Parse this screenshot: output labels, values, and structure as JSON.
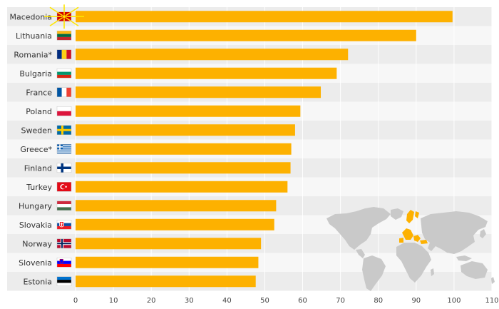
{
  "chart_data": {
    "type": "bar",
    "orientation": "horizontal",
    "title": "",
    "xlabel": "",
    "ylabel": "",
    "xlim": [
      0,
      110
    ],
    "ticks": [
      0,
      10,
      20,
      30,
      40,
      50,
      60,
      70,
      80,
      90,
      100,
      110
    ],
    "grid": true,
    "bar_color": "#fdb100",
    "categories": [
      "Macedonia",
      "Lithuania",
      "Romania*",
      "Bulgaria",
      "France",
      "Poland",
      "Sweden",
      "Greece*",
      "Finland",
      "Turkey",
      "Hungary",
      "Slovakia",
      "Norway",
      "Slovenia",
      "Estonia"
    ],
    "values": [
      99.6,
      90.0,
      72.0,
      69.0,
      64.8,
      59.4,
      58.0,
      57.0,
      56.8,
      56.0,
      53.0,
      52.5,
      49.0,
      48.3,
      47.6
    ],
    "flags": [
      "macedonia-flag",
      "lithuania-flag",
      "romania-flag",
      "bulgaria-flag",
      "france-flag",
      "poland-flag",
      "sweden-flag",
      "greece-flag",
      "finland-flag",
      "turkey-flag",
      "hungary-flag",
      "slovakia-flag",
      "norway-flag",
      "slovenia-flag",
      "estonia-flag"
    ]
  },
  "decorations": {
    "inset_map": "world-map-icon",
    "map_base_color": "#c9c9c9",
    "map_highlight_color": "#fdb100"
  }
}
